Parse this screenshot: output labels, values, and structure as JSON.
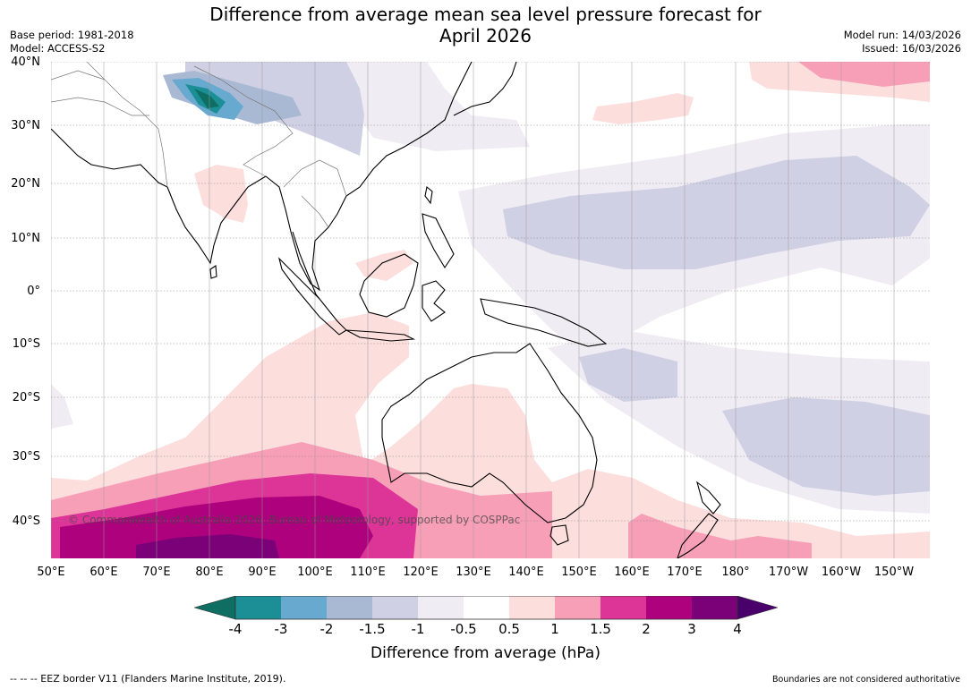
{
  "title_line1": "Difference from average mean sea level pressure forecast for",
  "title_line2": "April 2026",
  "base_period": "Base period: 1981-2018",
  "model": "Model: ACCESS-S2",
  "model_run": "Model run: 14/03/2026",
  "issued": "Issued: 16/03/2026",
  "lat_labels": [
    "40°N",
    "30°N",
    "20°N",
    "10°N",
    "0°",
    "10°S",
    "20°S",
    "30°S",
    "40°S"
  ],
  "lon_labels": [
    "50°E",
    "60°E",
    "70°E",
    "80°E",
    "90°E",
    "100°E",
    "110°E",
    "120°E",
    "130°E",
    "140°E",
    "150°E",
    "160°E",
    "170°E",
    "180°",
    "170°W",
    "160°W",
    "150°W"
  ],
  "copyright": "© Commonwealth of Australia 2026, Bureau of Meteorology, supported by COSPPac",
  "colorbar": {
    "ticks": [
      "-4",
      "-3",
      "-2",
      "-1.5",
      "-1",
      "-0.5",
      "0.5",
      "1",
      "1.5",
      "2",
      "3",
      "4"
    ],
    "colors": [
      "#0e6e62",
      "#1c8f96",
      "#67a9cf",
      "#a9b9d4",
      "#cfd0e3",
      "#f0ecf4",
      "#ffffff",
      "#fcdedd",
      "#f79fb7",
      "#dd3497",
      "#ae017e",
      "#7a0177",
      "#49006a"
    ],
    "label": "Difference from average (hPa)"
  },
  "footnote_left": "-- -- -- EEZ border V11 (Flanders Marine Institute, 2019).",
  "footnote_right": "Boundaries are not considered authoritative"
}
